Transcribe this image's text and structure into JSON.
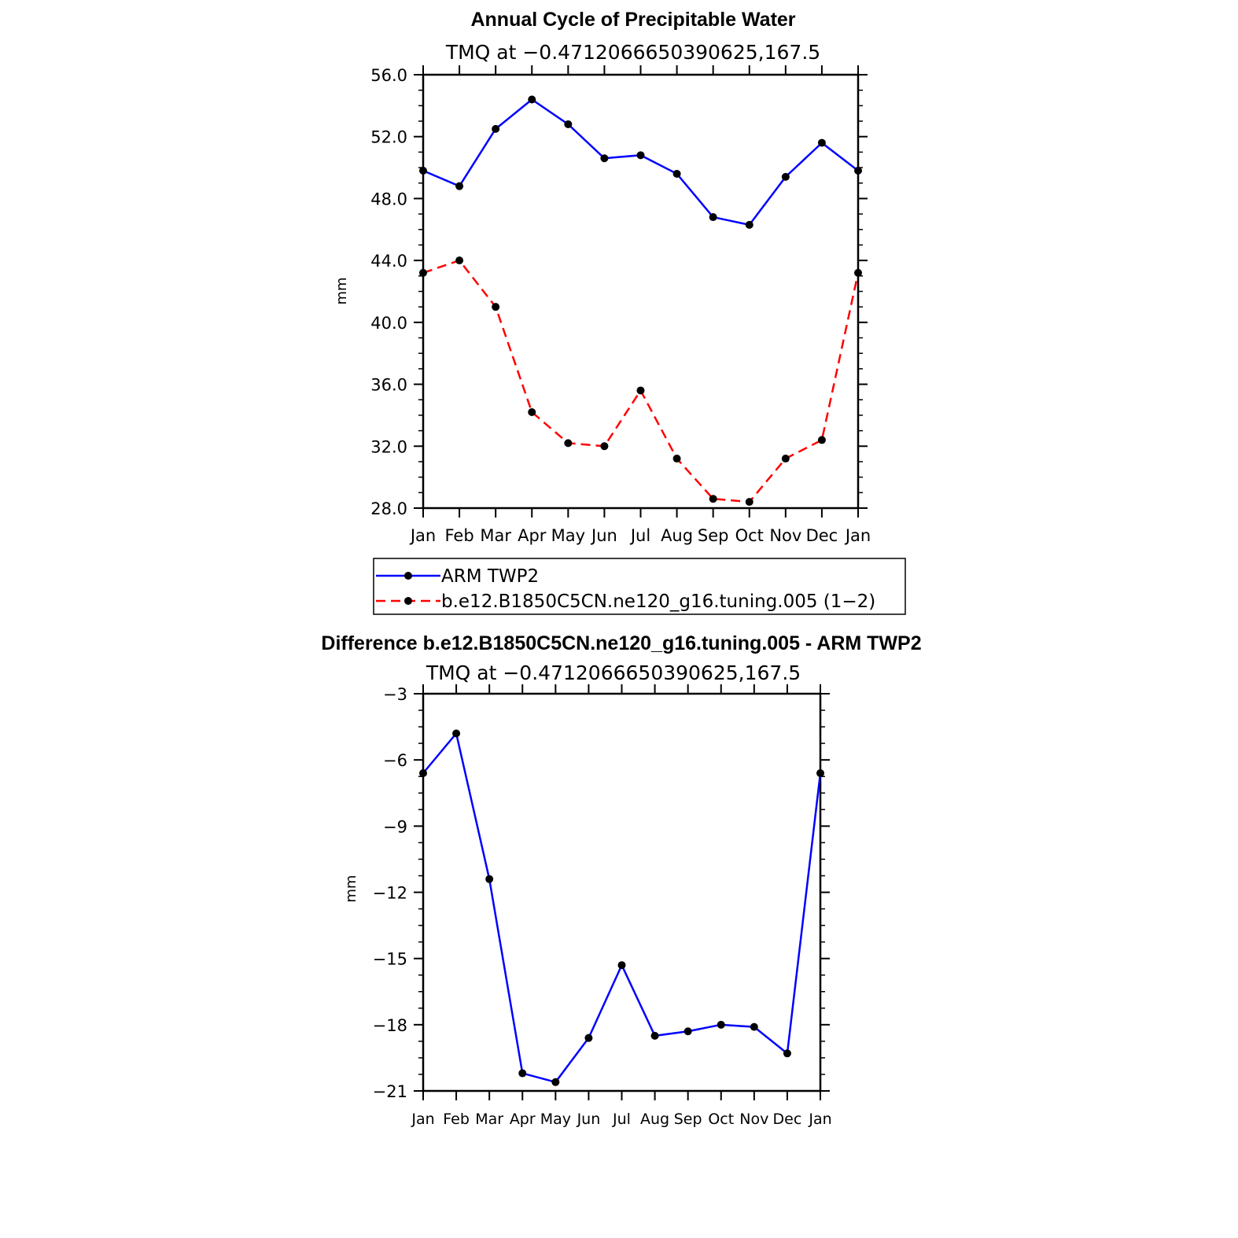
{
  "chart_data": [
    {
      "type": "line",
      "title": "Annual Cycle of Precipitable Water",
      "subtitle": "TMQ  at  −0.4712066650390625,167.5",
      "xlabel": "",
      "ylabel": "mm",
      "categories": [
        "Jan",
        "Feb",
        "Mar",
        "Apr",
        "May",
        "Jun",
        "Jul",
        "Aug",
        "Sep",
        "Oct",
        "Nov",
        "Dec",
        "Jan"
      ],
      "ylim": [
        28,
        56
      ],
      "yticks": [
        "28.0",
        "32.0",
        "36.0",
        "40.0",
        "44.0",
        "48.0",
        "52.0",
        "56.0"
      ],
      "series": [
        {
          "name": "ARM TWP2",
          "color": "#0000ff",
          "dash": "solid",
          "values": [
            49.8,
            48.8,
            52.5,
            54.4,
            52.8,
            50.6,
            50.8,
            49.6,
            46.8,
            46.3,
            49.4,
            51.6,
            49.8
          ]
        },
        {
          "name": "b.e12.B1850C5CN.ne120_g16.tuning.005 (1−2)",
          "color": "#ff0000",
          "dash": "dashed",
          "values": [
            43.2,
            44.0,
            41.0,
            34.2,
            32.2,
            32.0,
            35.6,
            31.2,
            28.6,
            28.4,
            31.2,
            32.4,
            43.2
          ]
        }
      ],
      "legend": "below"
    },
    {
      "type": "line",
      "title": "Difference b.e12.B1850C5CN.ne120_g16.tuning.005 - ARM TWP2",
      "subtitle": "TMQ  at  −0.4712066650390625,167.5",
      "xlabel": "",
      "ylabel": "mm",
      "categories": [
        "Jan",
        "Feb",
        "Mar",
        "Apr",
        "May",
        "Jun",
        "Jul",
        "Aug",
        "Sep",
        "Oct",
        "Nov",
        "Dec",
        "Jan"
      ],
      "ylim": [
        -21,
        -3
      ],
      "yticks": [
        "−21",
        "−18",
        "−15",
        "−12",
        "−9",
        "−6",
        "−3"
      ],
      "series": [
        {
          "name": "Difference",
          "color": "#0000ff",
          "dash": "solid",
          "values": [
            -6.6,
            -4.8,
            -11.4,
            -20.2,
            -20.6,
            -18.6,
            -15.3,
            -18.5,
            -18.3,
            -18.0,
            -18.1,
            -19.3,
            -6.6
          ]
        }
      ]
    }
  ]
}
